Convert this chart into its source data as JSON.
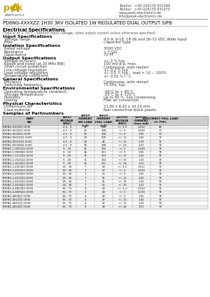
{
  "company_peak": "PeAk",
  "company_sub": "electronics",
  "phone": "Telefon:  +49 (0)6135 931069",
  "fax": "Telefax:  +49 (0)6135 931070",
  "web": "www.peak-electronics.de",
  "email": "info@peak-electronics.de",
  "title": "PD6NG-XXXXZ2:1H30 3KV ISOLATED 1W REGULATED DUAL OUTPUT SIP8",
  "section1": "Electrical Specifications",
  "subtitle": "(Typical at + 25°C , nominal input voltage, rated output current unless otherwise specified)",
  "input_spec_title": "Input Specifications",
  "input_rows": [
    [
      "Voltage range",
      "4.5-9, 9-18, 18-36 and 36-72 VDC Wide Input"
    ],
    [
      "Filter",
      "Capacitor type"
    ]
  ],
  "isolation_title": "Isolation Specifications",
  "isolation_rows": [
    [
      "Rated voltage",
      "3000 VDC"
    ],
    [
      "Resistance",
      "> 1 GΩ"
    ],
    [
      "Capacitance",
      "70 PF"
    ]
  ],
  "output_title": "Output Specifications",
  "output_rows": [
    [
      "Voltage accuracy",
      "+/- 2 % typ."
    ],
    [
      "Ripple and noise (at 20 MHz BW)",
      "100 mV p-p, max."
    ],
    [
      "Short circuit protection",
      "Continuous, auto restart"
    ],
    [
      "Line voltage regulation",
      "+/- 0.2 % typ."
    ],
    [
      "Load voltage regulation",
      "+/- 0.5 % typ.,  load = 10 ~ 100%"
    ],
    [
      "Temperature coefficient",
      "+/- 0.02 % / °C"
    ]
  ],
  "general_title": "General Specifications",
  "general_rows": [
    [
      "Efficiency",
      "Continuous, auto restart"
    ],
    [
      "Switching frequency",
      "75 KHz, typ."
    ]
  ],
  "env_title": "Environmental Specifications",
  "env_rows": [
    [
      "Operating temperature (ambient)",
      "-40°C to + 85°C"
    ],
    [
      "Storage temperature",
      "-55°C to + 125°C"
    ],
    [
      "Humidity",
      "Up to 95 %, non condensing"
    ],
    [
      "Cooling",
      "Free air convection"
    ]
  ],
  "phys_title": "Physical Characteristics",
  "phys_rows": [
    [
      "Dimensions SIP",
      "21.80 x 9.20 x 10.10 mm"
    ],
    [
      "Case material",
      "Non conductive black plastic"
    ]
  ],
  "parts_title": "Samples of Partnumbers",
  "table_rows": [
    [
      "PD6NG-0303Z2:1H30",
      "4.5 - 9",
      "24",
      "290",
      "+/- 3.3",
      "1:152",
      "68"
    ],
    [
      "PD6NG-0505Z2:1H30",
      "4.5 - 9",
      "25",
      "298",
      "+/- 5",
      "1:100",
      "70"
    ],
    [
      "PD6NG-0509Z2:1H30",
      "4.5 - 9",
      "23",
      "294",
      "+/- 9",
      "1:55",
      "70"
    ],
    [
      "PD6NG-05012Z2:1H30",
      "4.5 - 9",
      "23",
      "209",
      "+/- 12",
      "1:42",
      "72"
    ],
    [
      "PD6NG-05015Z2:1H30",
      "4.5 - 9",
      "23",
      "44",
      "+/- 15",
      "1:33",
      "72"
    ],
    [
      "PD6NG-05024Z2:1H30",
      "4.5 - 9",
      "29",
      "298",
      "+/- 24",
      "1:21",
      "72"
    ],
    [
      "PD6NG-1-0505Z2:1H30",
      "9 - 18",
      "14",
      "110",
      "+/- 5",
      "1:100",
      "73"
    ],
    [
      "PD6NG-1-0509Z2:1H30",
      "9 - 18",
      "14",
      "111",
      "+/- 9",
      "1:55",
      "74"
    ],
    [
      "PD6NG-1-1212Z2:1H30",
      "9 - 18",
      "11",
      "110",
      "+/- 12",
      "1:42",
      "76"
    ],
    [
      "PD6NG-1-2415Z2:1H30",
      "9 - 18",
      "11",
      "110",
      "+/- 15",
      "1:33",
      "76"
    ],
    [
      "PD6NG-1-0524Z2:1H30",
      "9 - 18",
      "12",
      "111",
      "+/- 24",
      "1:21",
      "76"
    ],
    [
      "PD6NG-2-4303Z2:1H30",
      "18 - 36",
      "7",
      "58",
      "+/- 3.3",
      "1:152",
      "77"
    ],
    [
      "PD6NG-2-4505Z2:1H30",
      "18 - 36",
      "7",
      "57",
      "+/- 5",
      "1:100",
      "72"
    ],
    [
      "PD6NG-2-4509Z2:1H30",
      "18 - 36",
      "7",
      "56",
      "+/- 9",
      "1:55",
      "74"
    ],
    [
      "PD6NG-2-4512Z2:1H30",
      "18 - 36",
      "7",
      "55",
      "+/- 12",
      "1:42",
      "76"
    ],
    [
      "PD6NG-2-4515Z2:1H30",
      "18 - 36",
      "7",
      "55",
      "+/- 15",
      "1:33",
      "76"
    ],
    [
      "PD6NG-2-4524Z2:1H30",
      "18 - 36",
      "7",
      "56",
      "+/- 24",
      "1:21",
      "73"
    ],
    [
      "PD6NG-4-4803Z2:1H30",
      "36 - 72",
      "8",
      "29",
      "+/- 3.3",
      "1:152",
      "72"
    ],
    [
      "PD6NG-4-4805Z2:1H30",
      "36 - 72",
      "4",
      "28",
      "+/- 5",
      "1:100",
      "74"
    ],
    [
      "PD6NG-4809Z2:1H30",
      "36 - 72",
      "4",
      "28",
      "+/- 9",
      "1:55",
      "74"
    ],
    [
      "PD6NG-4812Z2:1H30",
      "36 - 72",
      "4",
      "27",
      "+/- 12",
      "1:42",
      "76"
    ],
    [
      "PD6NG-4815Z2:1H30",
      "36 - 72",
      "4",
      "27",
      "+/- 15",
      "1:33",
      "76"
    ],
    [
      "PD6NG-4824Z2:1H30",
      "36 - 72",
      "4",
      "28",
      "+/- 24",
      "1:21",
      "73"
    ]
  ],
  "bg_color": "#ffffff",
  "header_bg": "#cccccc",
  "row_alt_bg": "#eeeeee",
  "border_color": "#999999",
  "peak_yellow": "#c8a000",
  "peak_dark": "#555555"
}
